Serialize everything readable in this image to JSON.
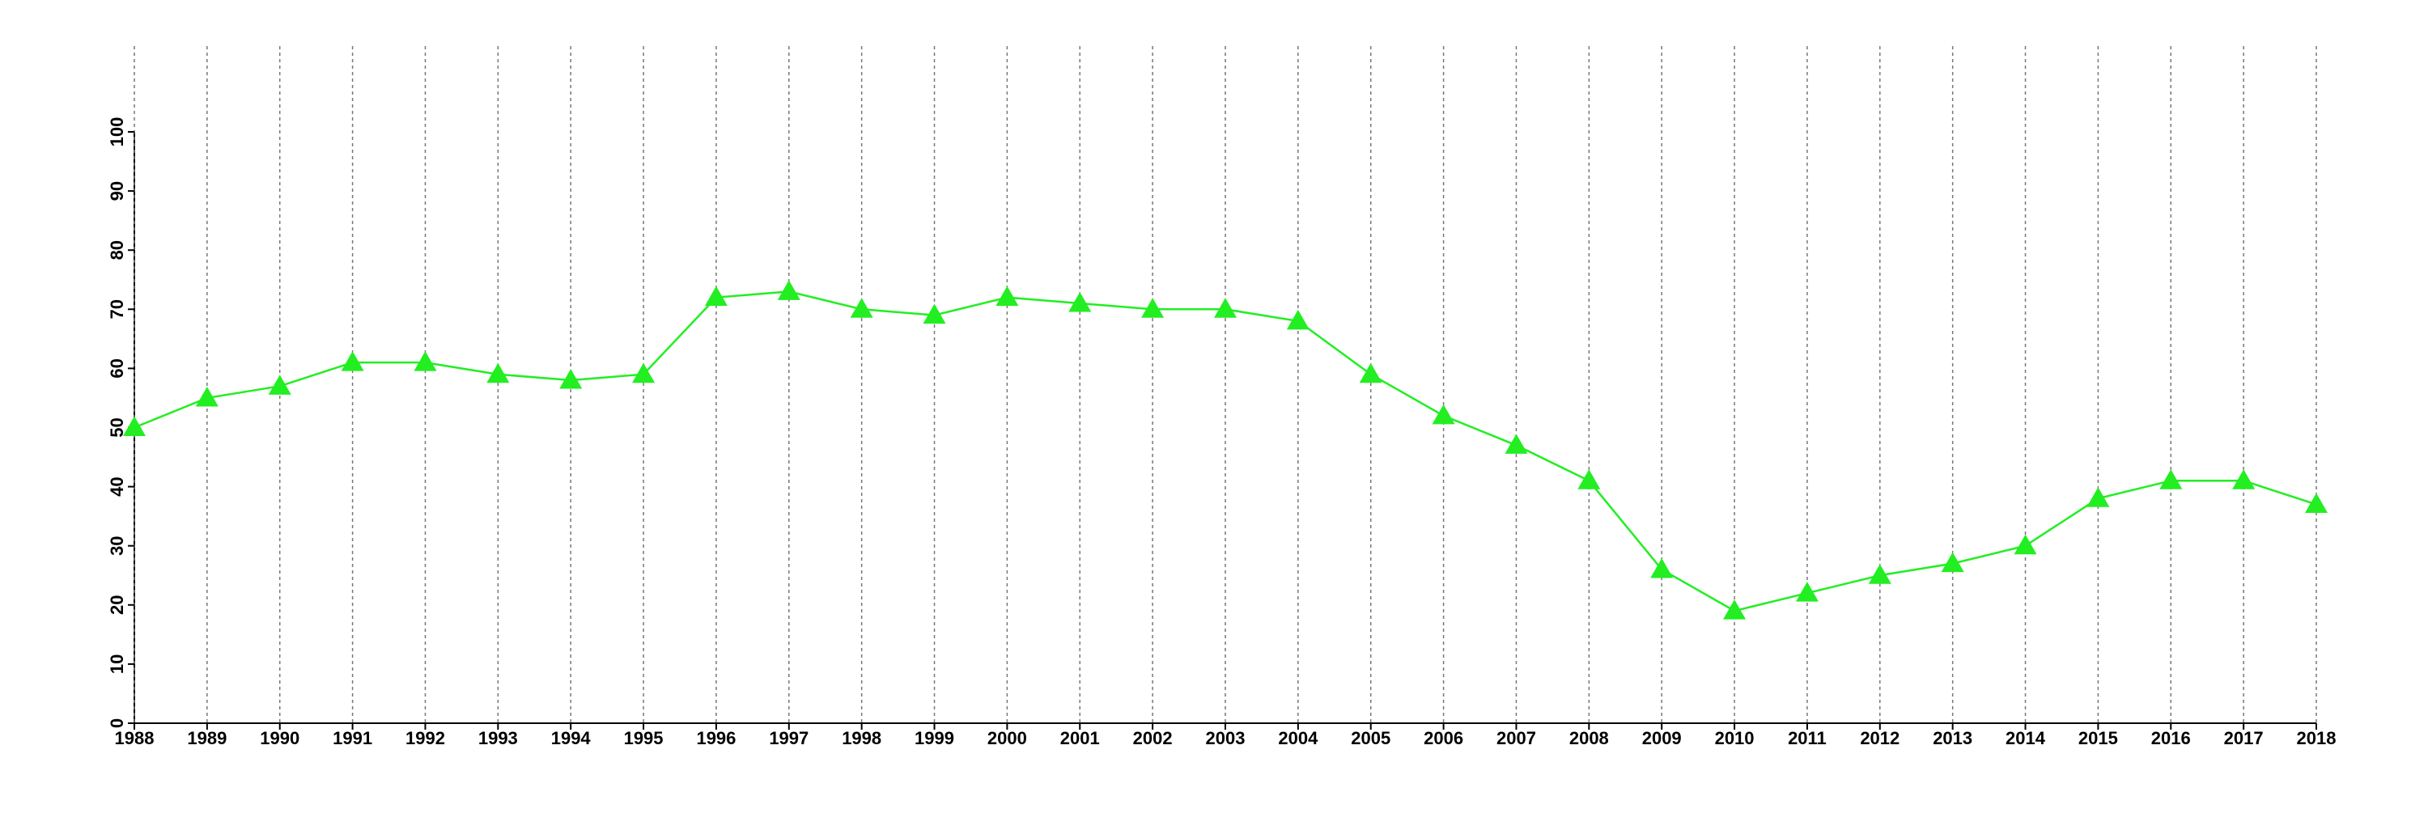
{
  "chart_data": {
    "type": "line",
    "x": [
      1988,
      1989,
      1990,
      1991,
      1992,
      1993,
      1994,
      1995,
      1996,
      1997,
      1998,
      1999,
      2000,
      2001,
      2002,
      2003,
      2004,
      2005,
      2006,
      2007,
      2008,
      2009,
      2010,
      2011,
      2012,
      2013,
      2014,
      2015,
      2016,
      2017,
      2018
    ],
    "series": [
      {
        "color": "#22ee22",
        "marker": "triangle",
        "values": [
          50,
          55,
          57,
          61,
          61,
          59,
          58,
          59,
          72,
          73,
          70,
          69,
          72,
          71,
          70,
          70,
          68,
          59,
          52,
          47,
          41,
          26,
          19,
          22,
          25,
          27,
          30,
          38,
          41,
          41,
          37
        ]
      }
    ],
    "xlim": [
      1988,
      2018
    ],
    "xticks": [
      1988,
      1989,
      1990,
      1991,
      1992,
      1993,
      1994,
      1995,
      1996,
      1997,
      1998,
      1999,
      2000,
      2001,
      2002,
      2003,
      2004,
      2005,
      2006,
      2007,
      2008,
      2009,
      2010,
      2011,
      2012,
      2013,
      2014,
      2015,
      2016,
      2017,
      2018
    ],
    "ylim": [
      0,
      100
    ],
    "yticks": [
      0,
      10,
      20,
      30,
      40,
      50,
      60,
      70,
      80,
      90,
      100
    ],
    "grid": "x"
  }
}
